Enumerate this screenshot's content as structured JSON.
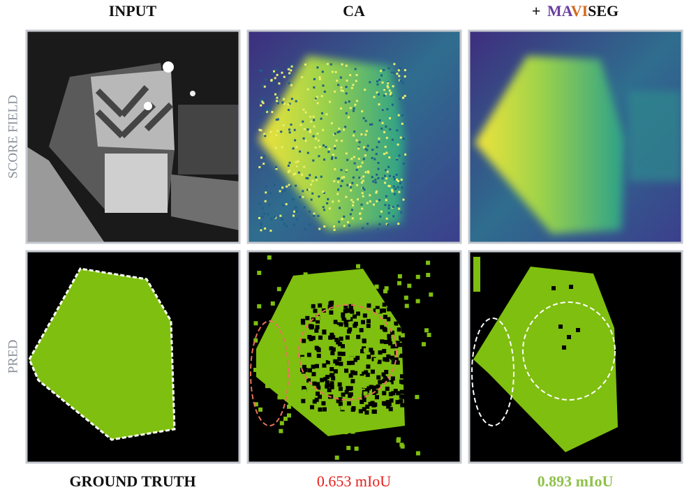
{
  "headers": {
    "input": "INPUT",
    "ca": "CA",
    "maviseg": {
      "plus": "+",
      "ma": "MA",
      "vi": "VI",
      "seg": "SEG"
    }
  },
  "row_labels": [
    "SCORE FIELD",
    "PRED"
  ],
  "captions": [
    "GROUND TRUTH",
    "0.653 mIoU",
    "0.893 mIoU"
  ]
}
